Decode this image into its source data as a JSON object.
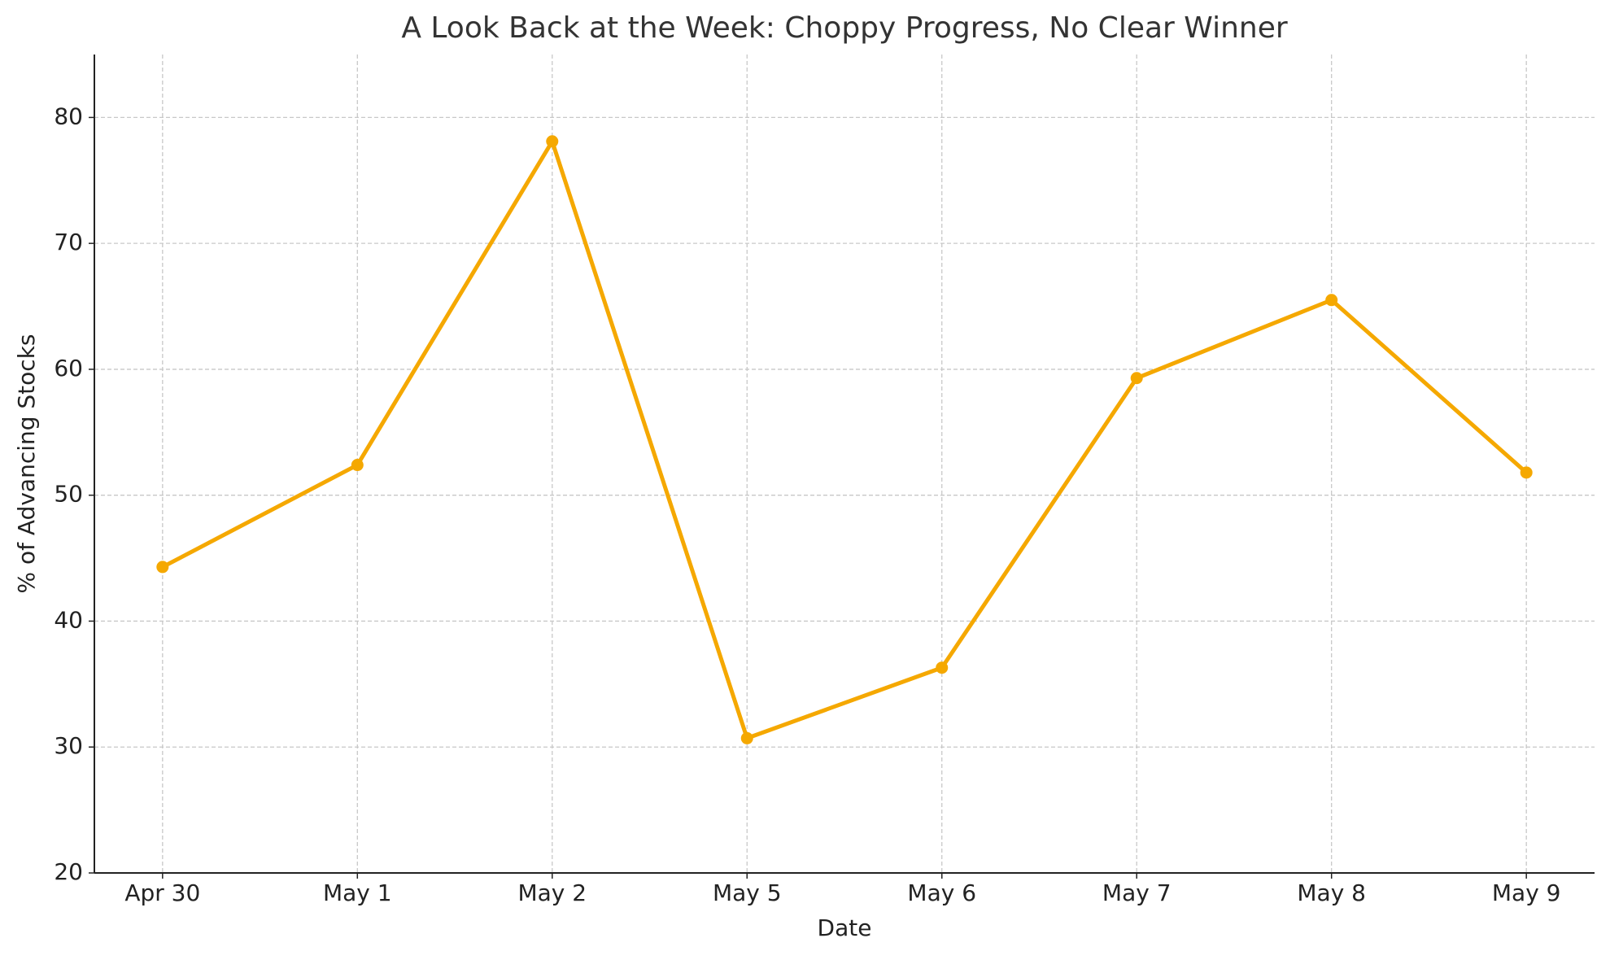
{
  "chart_data": {
    "type": "line",
    "title": "A Look Back at the Week: Choppy Progress, No Clear Winner",
    "x_label": "Date",
    "y_label": "% of Advancing Stocks",
    "categories": [
      "Apr 30",
      "May 1",
      "May 2",
      "May 5",
      "May 6",
      "May 7",
      "May 8",
      "May 9"
    ],
    "values": [
      44.3,
      52.4,
      78.1,
      30.7,
      36.3,
      59.3,
      65.5,
      51.8
    ],
    "color": "#f5a800",
    "ylim": [
      20,
      85
    ],
    "yticks": [
      20,
      30,
      40,
      50,
      60,
      70,
      80
    ],
    "grid": true
  }
}
